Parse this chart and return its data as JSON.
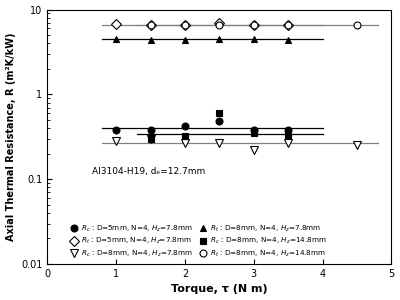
{
  "title": "",
  "xlabel": "Torque, τ (N m)",
  "ylabel": "Axial Thermal Resistance, R (m²K/kW)",
  "xlim": [
    0,
    5
  ],
  "ylim_log": [
    0.01,
    10
  ],
  "annotation": "Al3104-H19, dₑ=12.7mm",
  "series": [
    {
      "label": "$R_c$ : D=5mm, N=4, $H_z$=7.8mm",
      "x": [
        1.0,
        1.5,
        2.0,
        2.5,
        3.0,
        3.5
      ],
      "y": [
        0.38,
        0.38,
        0.42,
        0.48,
        0.38,
        0.38
      ],
      "marker": "o",
      "fillstyle": "full",
      "markersize": 5
    },
    {
      "label": "$R_c$ : D=8mm, N=4, $H_z$=7.8mm",
      "x": [
        1.0,
        1.5,
        2.0,
        2.5,
        3.0,
        3.5,
        4.5
      ],
      "y": [
        0.28,
        0.3,
        0.27,
        0.27,
        0.22,
        0.27,
        0.25
      ],
      "marker": "v",
      "fillstyle": "none",
      "markersize": 6
    },
    {
      "label": "$R_c$ : D=8mm, N=4, $H_z$=14.8mm",
      "x": [
        1.5,
        2.0,
        2.5,
        3.0,
        3.5
      ],
      "y": [
        0.3,
        0.32,
        0.6,
        0.35,
        0.33
      ],
      "marker": "s",
      "fillstyle": "full",
      "markersize": 5
    },
    {
      "label": "$R_t$ : D=5mm, N=4, $H_z$=7.8mm",
      "x": [
        1.0,
        1.5,
        2.0,
        2.5,
        3.0,
        3.5
      ],
      "y": [
        6.8,
        6.5,
        6.5,
        7.0,
        6.5,
        6.5
      ],
      "marker": "D",
      "fillstyle": "none",
      "markersize": 5
    },
    {
      "label": "$R_t$ : D=8mm, N=4, $H_z$=7.8mm",
      "x": [
        1.0,
        1.5,
        2.0,
        2.5,
        3.0,
        3.5
      ],
      "y": [
        4.5,
        4.4,
        4.4,
        4.5,
        4.5,
        4.4
      ],
      "marker": "^",
      "fillstyle": "full",
      "markersize": 5
    },
    {
      "label": "$R_t$ : D=8mm, N=4, $H_z$=14.8mm",
      "x": [
        1.5,
        2.0,
        2.5,
        3.0,
        3.5,
        4.5
      ],
      "y": [
        6.5,
        6.5,
        6.5,
        6.5,
        6.5,
        6.5
      ],
      "marker": "o",
      "fillstyle": "none",
      "markersize": 5
    }
  ],
  "fit_lines": [
    {
      "x": [
        0.8,
        4.0
      ],
      "y": [
        0.4,
        0.4
      ],
      "color": "black",
      "lw": 0.9
    },
    {
      "x": [
        0.8,
        4.8
      ],
      "y": [
        0.265,
        0.265
      ],
      "color": "gray",
      "lw": 0.9
    },
    {
      "x": [
        1.3,
        4.0
      ],
      "y": [
        0.345,
        0.345
      ],
      "color": "black",
      "lw": 0.9
    },
    {
      "x": [
        0.8,
        4.0
      ],
      "y": [
        6.65,
        6.65
      ],
      "color": "gray",
      "lw": 0.9
    },
    {
      "x": [
        0.8,
        4.0
      ],
      "y": [
        4.45,
        4.45
      ],
      "color": "black",
      "lw": 0.9
    },
    {
      "x": [
        1.3,
        4.8
      ],
      "y": [
        6.5,
        6.5
      ],
      "color": "gray",
      "lw": 0.9
    }
  ],
  "background_color": "#ffffff"
}
